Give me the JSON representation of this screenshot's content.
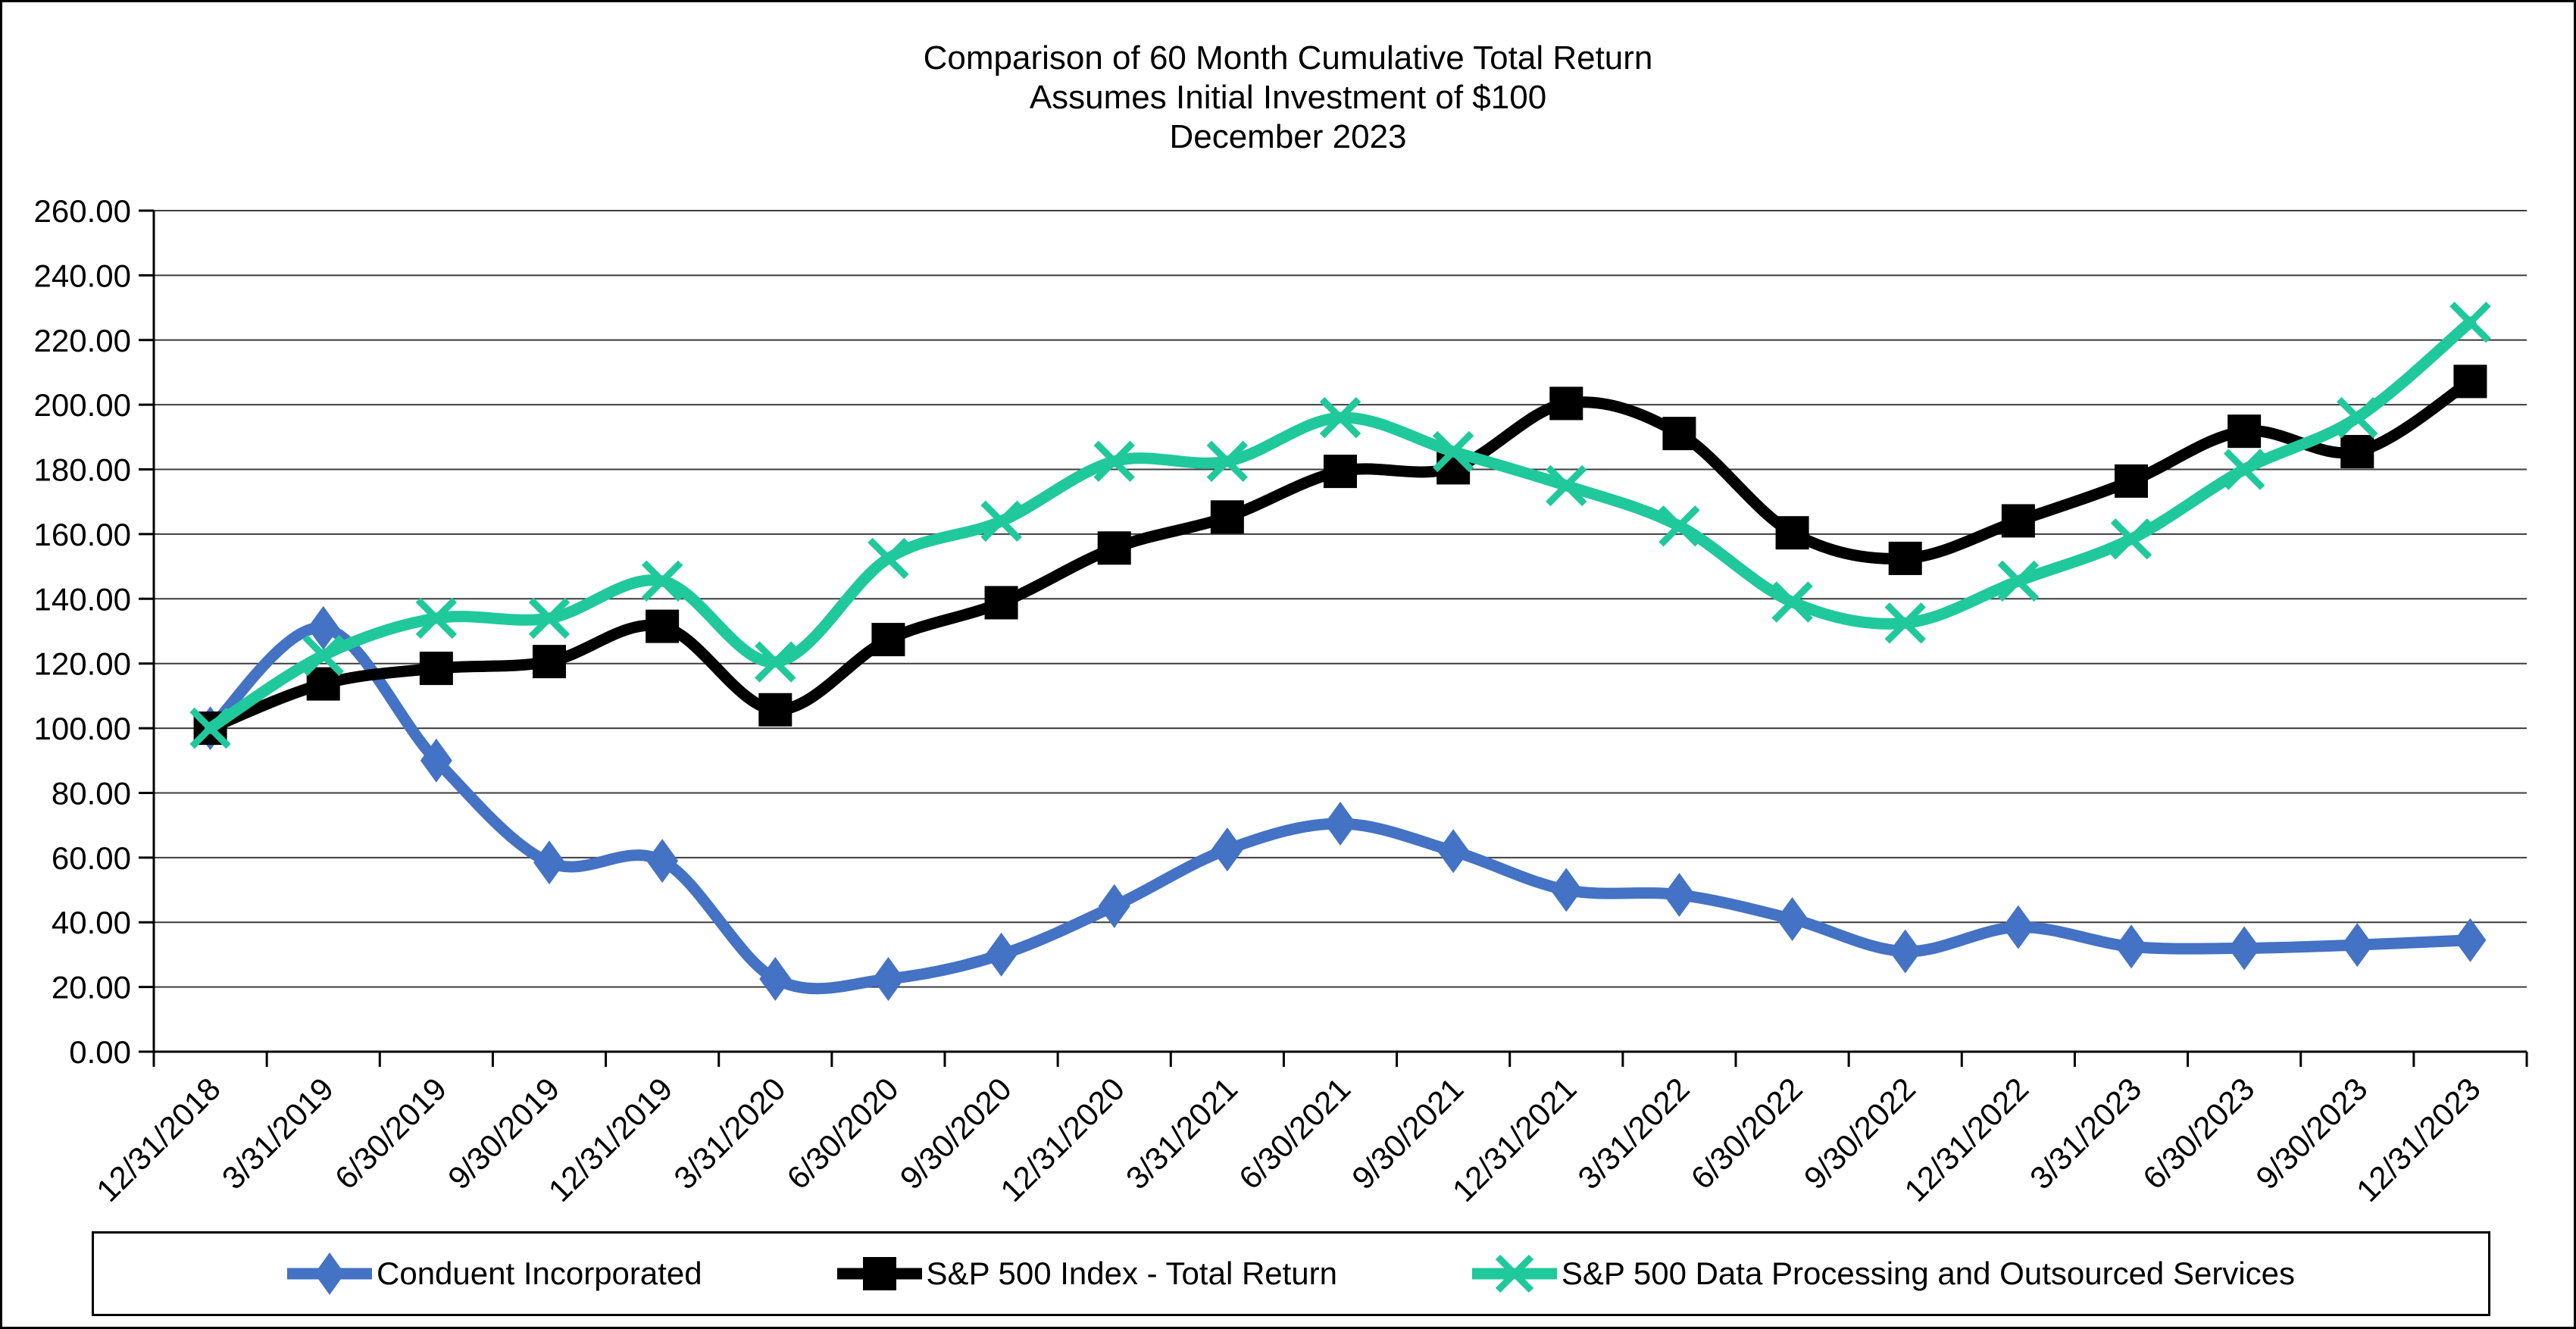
{
  "header": {
    "title_line1": "Comparison of 60 Month Cumulative Total Return",
    "title_line2": "Assumes Initial Investment of $100",
    "title_line3": "December 2023"
  },
  "chart_data": {
    "type": "line",
    "title": "Comparison of 60 Month Cumulative Total Return — Assumes Initial Investment of $100 — December 2023",
    "xlabel": "",
    "ylabel": "",
    "ylim": [
      0,
      260
    ],
    "ytick_step": 20,
    "y_tick_labels": [
      "0.00",
      "20.00",
      "40.00",
      "60.00",
      "80.00",
      "100.00",
      "120.00",
      "140.00",
      "160.00",
      "180.00",
      "200.00",
      "220.00",
      "240.00",
      "260.00"
    ],
    "grid": "horizontal",
    "legend_position": "bottom",
    "line_style": "smooth",
    "x_labels": [
      "12/31/2018",
      "3/31/2019",
      "6/30/2019",
      "9/30/2019",
      "12/31/2019",
      "3/31/2020",
      "6/30/2020",
      "9/30/2020",
      "12/31/2020",
      "3/31/2021",
      "6/30/2021",
      "9/30/2021",
      "12/31/2021",
      "3/31/2022",
      "6/30/2022",
      "9/30/2022",
      "12/31/2022",
      "3/31/2023",
      "6/30/2023",
      "9/30/2023",
      "12/31/2023"
    ],
    "series": [
      {
        "name": "Conduent Incorporated",
        "color": "#4472C4",
        "marker": "diamond",
        "values": [
          100.0,
          131.0,
          90.0,
          58.5,
          59.0,
          22.5,
          22.5,
          30.0,
          45.0,
          62.5,
          70.5,
          62.0,
          50.0,
          48.5,
          41.0,
          31.0,
          38.5,
          32.5,
          32.0,
          33.0,
          34.5
        ]
      },
      {
        "name": "S&P 500 Index - Total Return",
        "color": "#000000",
        "marker": "square",
        "values": [
          100.0,
          113.7,
          118.5,
          120.6,
          131.5,
          105.7,
          127.4,
          138.8,
          155.7,
          165.3,
          179.4,
          180.5,
          200.4,
          191.1,
          160.4,
          152.5,
          164.1,
          176.4,
          191.8,
          185.5,
          207.2
        ]
      },
      {
        "name": "S&P 500 Data Processing and Outsourced Services",
        "color": "#1FC99B",
        "marker": "x",
        "values": [
          100.0,
          122.5,
          134.0,
          134.0,
          145.5,
          120.5,
          152.5,
          164.0,
          182.5,
          182.5,
          196.0,
          185.5,
          175.0,
          162.5,
          139.0,
          132.5,
          145.5,
          158.5,
          180.0,
          196.0,
          225.5
        ]
      }
    ]
  }
}
